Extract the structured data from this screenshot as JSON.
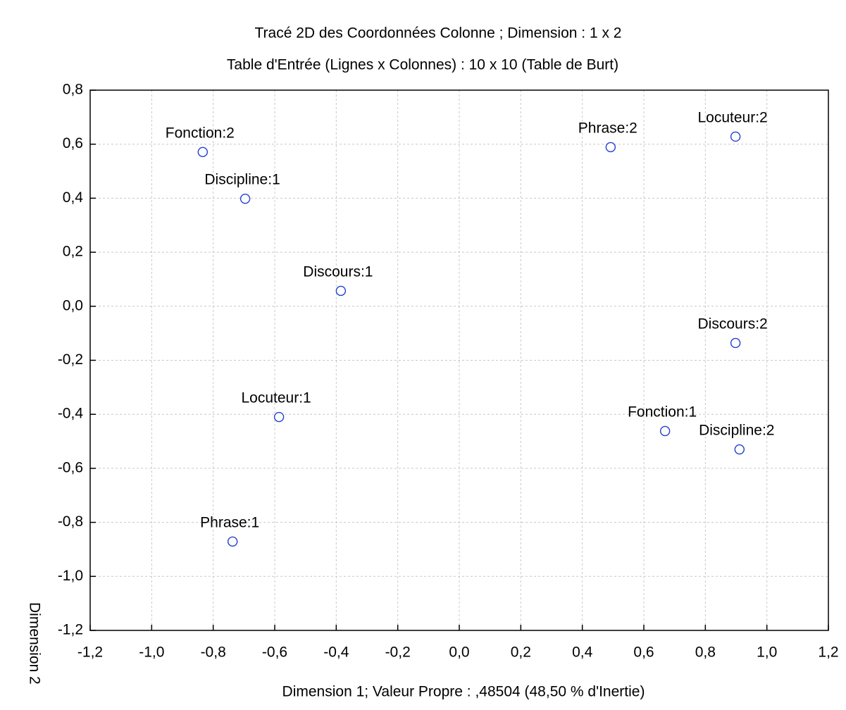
{
  "chart_data": {
    "type": "scatter",
    "title": "Tracé 2D des Coordonnées Colonne ; Dimension :  1 x 2",
    "subtitle": "Table d'Entrée (Lignes x Colonnes) : 10 x 10 (Table de Burt)",
    "xlabel": "Dimension 1; Valeur Propre : ,48504 (48,50  % d'Inertie)",
    "ylabel": "Dimension 2",
    "labels": [
      "Fonction:2",
      "Discipline:1",
      "Discours:1",
      "Locuteur:1",
      "Phrase:1",
      "Phrase:2",
      "Locuteur:2",
      "Discours:2",
      "Fonction:1",
      "Discipline:2"
    ],
    "x": [
      -0.834,
      -0.696,
      -0.385,
      -0.586,
      -0.737,
      0.492,
      0.898,
      0.898,
      0.669,
      0.911
    ],
    "series": [
      {
        "color": "#2040d0",
        "values": [
          0.571,
          0.398,
          0.057,
          -0.41,
          -0.871,
          0.589,
          0.628,
          -0.136,
          -0.462,
          -0.53
        ]
      }
    ],
    "xlim": [
      -1.2,
      1.2
    ],
    "ylim": [
      -1.2,
      0.8
    ],
    "xticks": [
      {
        "value": -1.2,
        "label": "-1,2"
      },
      {
        "value": -1.0,
        "label": "-1,0"
      },
      {
        "value": -0.8,
        "label": "-0,8"
      },
      {
        "value": -0.6,
        "label": "-0,6"
      },
      {
        "value": -0.4,
        "label": "-0,4"
      },
      {
        "value": -0.2,
        "label": "-0,2"
      },
      {
        "value": 0,
        "label": "0,0"
      },
      {
        "value": 0.2,
        "label": "0,2"
      },
      {
        "value": 0.4,
        "label": "0,4"
      },
      {
        "value": 0.6,
        "label": "0,6"
      },
      {
        "value": 0.8,
        "label": "0,8"
      },
      {
        "value": 1.0,
        "label": "1,0"
      },
      {
        "value": 1.2,
        "label": "1,2"
      }
    ],
    "yticks": [
      {
        "value": -1.2,
        "label": "-1,2"
      },
      {
        "value": -1.0,
        "label": "-1,0"
      },
      {
        "value": -0.8,
        "label": "-0,8"
      },
      {
        "value": -0.6,
        "label": "-0,6"
      },
      {
        "value": -0.4,
        "label": "-0,4"
      },
      {
        "value": -0.2,
        "label": "-0,2"
      },
      {
        "value": 0,
        "label": "0,0"
      },
      {
        "value": 0.2,
        "label": "0,2"
      },
      {
        "value": 0.4,
        "label": "0,4"
      },
      {
        "value": 0.6,
        "label": "0,6"
      },
      {
        "value": 0.8,
        "label": "0,8"
      }
    ],
    "grid": true
  }
}
